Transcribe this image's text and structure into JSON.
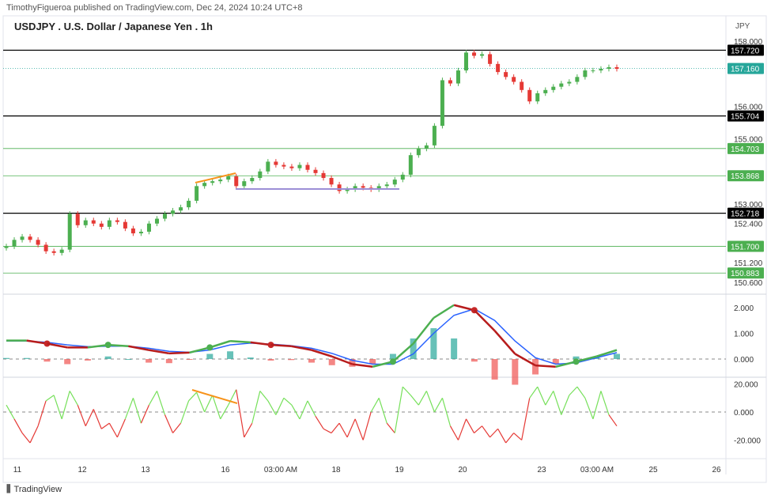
{
  "header": {
    "published": "TimothyFigueroa published on TradingView.com, Dec 24, 2024 10:24 UTC+8",
    "title": "USDJPY . U.S. Dollar / Japanese Yen . 1h"
  },
  "footer": {
    "brand": "TradingView"
  },
  "chart_data": {
    "type": "candlestick",
    "currency": "JPY",
    "price_ticks": [
      "158.000",
      "156.000",
      "155.000",
      "153.000",
      "152.400",
      "151.200",
      "150.600"
    ],
    "price_tick_values": [
      158.0,
      156.0,
      155.0,
      153.0,
      152.4,
      151.2,
      150.6
    ],
    "levels": [
      {
        "value": 157.72,
        "label": "157.720",
        "color": "#000000",
        "style": "solid"
      },
      {
        "value": 157.16,
        "label": "157.160",
        "color": "#26a69a",
        "style": "dotted"
      },
      {
        "value": 155.704,
        "label": "155.704",
        "color": "#000000",
        "style": "solid"
      },
      {
        "value": 154.703,
        "label": "154.703",
        "color": "#4caf50",
        "style": "solid"
      },
      {
        "value": 153.868,
        "label": "153.868",
        "color": "#4caf50",
        "style": "solid"
      },
      {
        "value": 152.718,
        "label": "152.718",
        "color": "#000000",
        "style": "solid"
      },
      {
        "value": 151.7,
        "label": "151.700",
        "color": "#4caf50",
        "style": "solid"
      },
      {
        "value": 150.883,
        "label": "150.883",
        "color": "#4caf50",
        "style": "solid"
      }
    ],
    "closes": [
      151.7,
      151.9,
      152.0,
      151.9,
      151.75,
      151.55,
      151.5,
      151.6,
      152.7,
      152.35,
      152.5,
      152.4,
      152.3,
      152.5,
      152.45,
      152.25,
      152.1,
      152.15,
      152.4,
      152.55,
      152.7,
      152.8,
      152.9,
      153.1,
      153.55,
      153.65,
      153.7,
      153.75,
      153.85,
      153.55,
      153.7,
      153.8,
      154.0,
      154.3,
      154.2,
      154.15,
      154.1,
      154.2,
      154.05,
      153.95,
      153.8,
      153.6,
      153.4,
      153.45,
      153.55,
      153.5,
      153.45,
      153.55,
      153.6,
      153.75,
      153.9,
      154.5,
      154.7,
      154.8,
      155.4,
      156.8,
      156.7,
      157.1,
      157.65,
      157.55,
      157.6,
      157.3,
      157.05,
      156.9,
      156.75,
      156.5,
      156.15,
      156.4,
      156.5,
      156.6,
      156.7,
      156.75,
      156.9,
      157.1,
      157.1,
      157.15,
      157.2,
      157.15
    ],
    "x_labels": [
      "11",
      "12",
      "13",
      "16",
      "03:00 AM",
      "18",
      "19",
      "20",
      "23",
      "03:00 AM",
      "25",
      "26"
    ],
    "macd": {
      "ticks": [
        "2.000",
        "1.000",
        "0.000"
      ],
      "tick_values": [
        2,
        1,
        0
      ],
      "macd": [
        0.72,
        0.72,
        0.6,
        0.45,
        0.45,
        0.55,
        0.5,
        0.35,
        0.22,
        0.25,
        0.45,
        0.7,
        0.65,
        0.55,
        0.5,
        0.35,
        0.1,
        -0.2,
        -0.3,
        -0.1,
        0.6,
        1.6,
        2.1,
        1.9,
        1.1,
        0.2,
        -0.25,
        -0.3,
        -0.1,
        0.1,
        0.35
      ],
      "signal": [
        0.7,
        0.7,
        0.65,
        0.55,
        0.48,
        0.5,
        0.5,
        0.42,
        0.3,
        0.26,
        0.35,
        0.55,
        0.62,
        0.58,
        0.52,
        0.42,
        0.22,
        -0.05,
        -0.2,
        -0.2,
        0.2,
        1.0,
        1.7,
        1.95,
        1.5,
        0.7,
        0.05,
        -0.2,
        -0.15,
        0.05,
        0.25
      ]
    },
    "oscillator": {
      "ticks": [
        "20.000",
        "0.000",
        "-20.000"
      ],
      "tick_values": [
        20,
        0,
        -20
      ],
      "values": [
        5,
        -5,
        -15,
        -22,
        -10,
        8,
        12,
        -5,
        15,
        5,
        -10,
        2,
        -12,
        -8,
        -18,
        -5,
        10,
        -8,
        5,
        15,
        -2,
        -15,
        -8,
        8,
        14,
        0,
        12,
        -5,
        5,
        16,
        -18,
        -8,
        15,
        8,
        -2,
        10,
        5,
        -5,
        8,
        -3,
        -12,
        -15,
        -8,
        -18,
        -5,
        -20,
        0,
        10,
        -8,
        -15,
        18,
        12,
        5,
        15,
        0,
        10,
        -10,
        -20,
        -5,
        -15,
        -10,
        -18,
        -12,
        -22,
        -15,
        -20,
        10,
        18,
        5,
        15,
        -2,
        12,
        18,
        10,
        -5,
        15,
        -2,
        -10
      ]
    },
    "colors": {
      "up": "#4caf50",
      "down": "#e53935",
      "signal": "#2962ff",
      "grid": "#e0e3eb",
      "trend": "#f7931a",
      "support": "#9c8fd6"
    }
  }
}
